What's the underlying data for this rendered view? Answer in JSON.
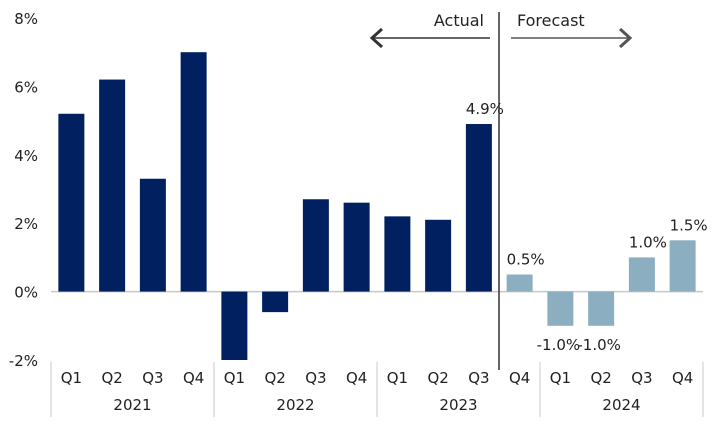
{
  "chart_data": {
    "type": "bar",
    "title": "",
    "xlabel": "",
    "ylabel": "",
    "ylim": [
      -2,
      8
    ],
    "yticks": [
      "-2%",
      "0%",
      "2%",
      "4%",
      "6%",
      "8%"
    ],
    "ytick_values": [
      -2,
      0,
      2,
      4,
      6,
      8
    ],
    "grid": false,
    "categories": [
      "Q1",
      "Q2",
      "Q3",
      "Q4",
      "Q1",
      "Q2",
      "Q3",
      "Q4",
      "Q1",
      "Q2",
      "Q3",
      "Q4",
      "Q1",
      "Q2",
      "Q3",
      "Q4"
    ],
    "years": [
      {
        "label": "2021",
        "quarters": 4
      },
      {
        "label": "2022",
        "quarters": 4
      },
      {
        "label": "2023",
        "quarters": 4
      },
      {
        "label": "2024",
        "quarters": 4
      }
    ],
    "values": [
      5.2,
      6.2,
      3.3,
      7.0,
      -2.0,
      -0.6,
      2.7,
      2.6,
      2.2,
      2.1,
      4.9,
      0.5,
      -1.0,
      -1.0,
      1.0,
      1.5
    ],
    "forecast": [
      false,
      false,
      false,
      false,
      false,
      false,
      false,
      false,
      false,
      false,
      false,
      true,
      true,
      true,
      true,
      true
    ],
    "data_labels": [
      "",
      "",
      "",
      "",
      "",
      "",
      "",
      "",
      "",
      "",
      "4.9%",
      "0.5%",
      "-1.0%",
      "-1.0%",
      "1.0%",
      "1.5%"
    ],
    "annotations": {
      "actual": "Actual",
      "forecast": "Forecast"
    },
    "colors": {
      "actual": "#002060",
      "forecast": "#8bafc0",
      "axis": "#c8c8c8",
      "divider": "#333333"
    }
  }
}
